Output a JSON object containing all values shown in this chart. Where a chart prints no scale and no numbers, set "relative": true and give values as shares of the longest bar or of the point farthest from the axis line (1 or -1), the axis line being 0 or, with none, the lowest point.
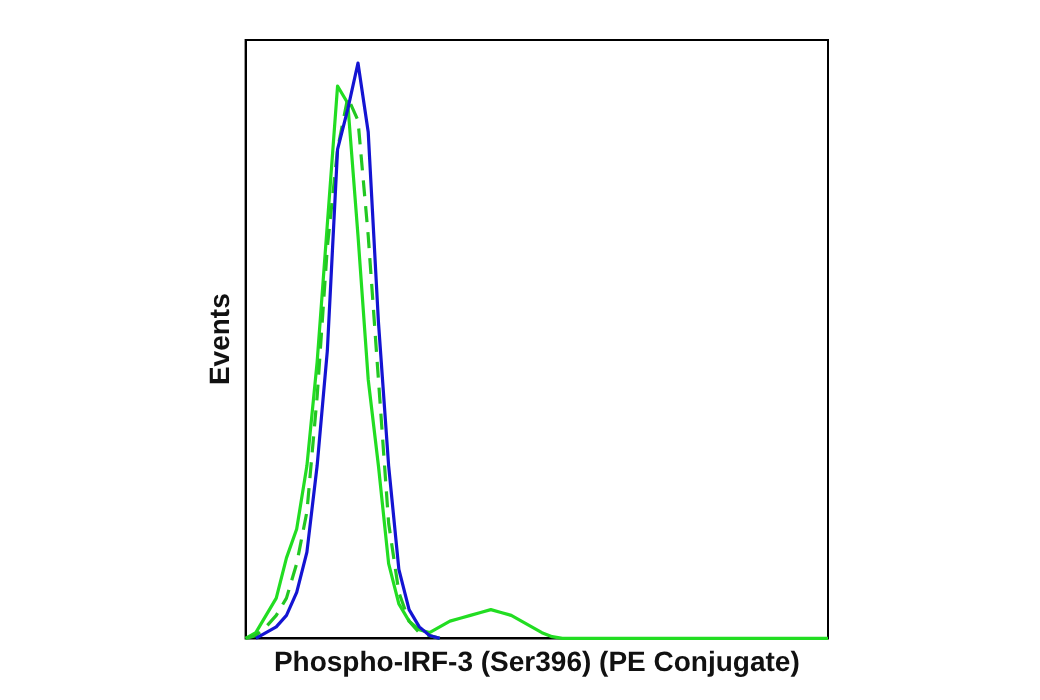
{
  "chart_data": {
    "type": "line",
    "relative": true,
    "xlabel": "Phospho-IRF-3 (Ser396) (PE Conjugate)",
    "ylabel": "Events",
    "grid": false,
    "legend": false,
    "marker": "none",
    "categories": [
      null,
      null,
      null,
      null,
      null,
      null,
      null,
      null,
      null,
      null,
      null,
      null,
      null,
      null,
      null,
      null,
      null,
      null,
      null,
      null,
      null,
      null,
      null,
      null,
      null,
      null,
      null,
      null,
      null,
      null,
      null,
      null,
      null,
      null,
      null,
      null,
      null,
      null,
      null,
      null,
      null,
      null,
      null,
      null,
      null,
      null,
      null,
      null,
      null,
      null,
      null,
      null,
      null,
      null,
      null,
      null,
      null,
      null
    ],
    "series": [
      {
        "color": "#1414d2",
        "line_style": "solid",
        "values": [
          null,
          0,
          0.01,
          0.02,
          0.04,
          0.08,
          0.15,
          0.3,
          0.5,
          0.85,
          0.92,
          1,
          0.88,
          0.55,
          0.3,
          0.12,
          0.05,
          0.02,
          0.005,
          0,
          null,
          null,
          null,
          null,
          null,
          null,
          null,
          null,
          null,
          null,
          null,
          null,
          null,
          null,
          null,
          null,
          null,
          null,
          null,
          null,
          null,
          null,
          null,
          null,
          null,
          null,
          null,
          null,
          null,
          null,
          null,
          null,
          null,
          null,
          null,
          null,
          null,
          null
        ]
      },
      {
        "color": "#22c822",
        "line_style": "dashed",
        "values": [
          0,
          0.005,
          0.02,
          0.04,
          0.07,
          0.13,
          0.22,
          0.42,
          0.68,
          0.85,
          0.94,
          0.9,
          0.7,
          0.45,
          0.2,
          0.08,
          0.03,
          0.01,
          0.005,
          0,
          null,
          null,
          null,
          null,
          null,
          null,
          null,
          null,
          null,
          null,
          null,
          null,
          null,
          null,
          null,
          null,
          null,
          null,
          null,
          null,
          null,
          null,
          null,
          null,
          null,
          null,
          null,
          null,
          null,
          null,
          null,
          null,
          null,
          null,
          null,
          null,
          null,
          null
        ]
      },
      {
        "color": "#22dd22",
        "line_style": "solid",
        "values": [
          0,
          0.01,
          0.04,
          0.07,
          0.14,
          0.19,
          0.3,
          0.48,
          0.72,
          0.96,
          0.93,
          0.7,
          0.45,
          0.3,
          0.13,
          0.06,
          0.03,
          0.015,
          0.01,
          0.02,
          0.03,
          0.035,
          0.04,
          0.045,
          0.05,
          0.045,
          0.04,
          0.03,
          0.02,
          0.01,
          0.003,
          0,
          0,
          0,
          0,
          0,
          0,
          0,
          0,
          0,
          0,
          0,
          0,
          0,
          0,
          0,
          0,
          0,
          0,
          0,
          0,
          0,
          0,
          0,
          0,
          0,
          0,
          0
        ]
      }
    ]
  }
}
